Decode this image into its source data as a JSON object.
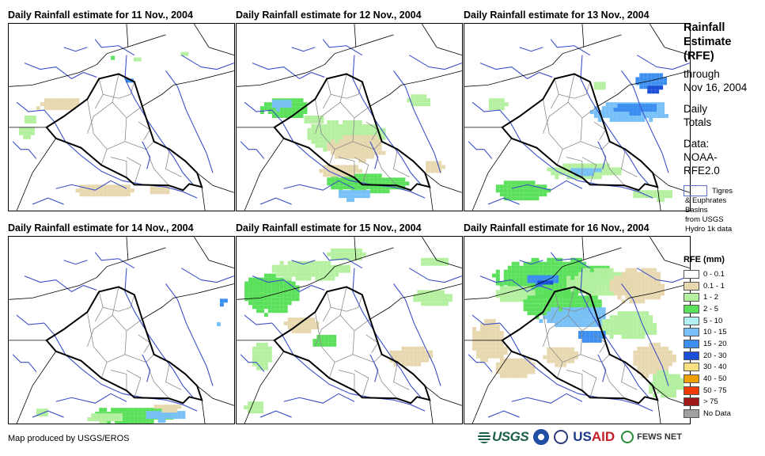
{
  "panels": [
    {
      "title": "Daily Rainfall estimate for 11 Nov., 2004"
    },
    {
      "title": "Daily Rainfall estimate for 12 Nov., 2004"
    },
    {
      "title": "Daily Rainfall estimate for 13 Nov., 2004"
    },
    {
      "title": "Daily Rainfall estimate for 14 Nov., 2004"
    },
    {
      "title": "Daily Rainfall estimate for 15 Nov., 2004"
    },
    {
      "title": "Daily Rainfall estimate for 16 Nov., 2004"
    }
  ],
  "side": {
    "title_lines": [
      "Rainfall",
      "Estimate",
      "(RFE)"
    ],
    "through": "through",
    "date": "Nov 16, 2004",
    "daily": "Daily",
    "totals": "Totals",
    "data_label": "Data:",
    "data_source_1": "NOAA-",
    "data_source_2": "RFE2.0"
  },
  "basin_key": {
    "line1": "Tigres",
    "line2": "& Euphrates",
    "line3": "Basins",
    "line4": "from USGS",
    "line5": "Hydro 1k data"
  },
  "legend": {
    "title": "RFE (mm)",
    "items": [
      {
        "label": "0 - 0.1",
        "color": "#ffffff"
      },
      {
        "label": "0.1 - 1",
        "color": "#e8d8b0"
      },
      {
        "label": "1 - 2",
        "color": "#b4f0a0"
      },
      {
        "label": "2 - 5",
        "color": "#5ae05a"
      },
      {
        "label": "5 - 10",
        "color": "#b0f0f0"
      },
      {
        "label": "10 - 15",
        "color": "#78c0f8"
      },
      {
        "label": "15 - 20",
        "color": "#3c8ef0"
      },
      {
        "label": "20 - 30",
        "color": "#1c4ed8"
      },
      {
        "label": "30 - 40",
        "color": "#f8e080"
      },
      {
        "label": "40 - 50",
        "color": "#f0a000"
      },
      {
        "label": "50 - 75",
        "color": "#f03c00"
      },
      {
        "label": "> 75",
        "color": "#a01818"
      },
      {
        "label": "No Data",
        "color": "#a0a0a0"
      }
    ]
  },
  "footer": {
    "credit": "Map produced by USGS/EROS",
    "usgs_logo": "USGS",
    "usaid_logo_us": "US",
    "usaid_logo_aid": "AID",
    "fews_logo": "FEWS NET"
  },
  "colors": {
    "river": "#3a4fc8",
    "iraq_border": "#000000",
    "province_border": "#8a8a8a",
    "country_border": "#000000"
  }
}
